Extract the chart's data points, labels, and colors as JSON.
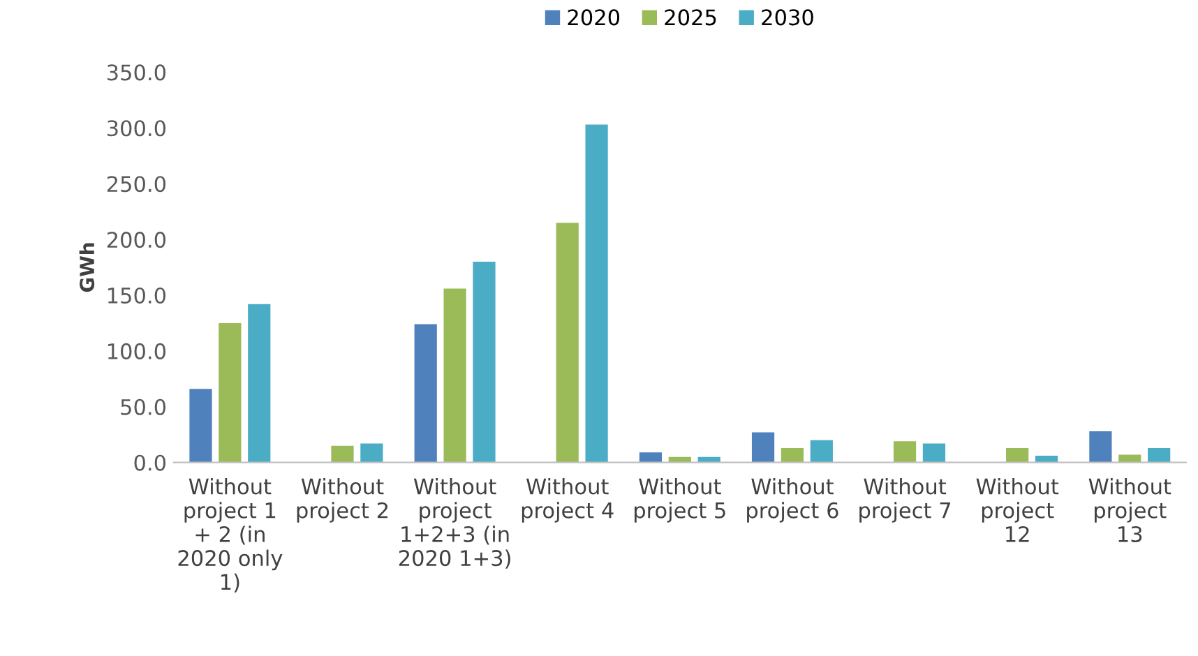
{
  "chart_data": {
    "type": "bar",
    "ylabel": "GWh",
    "categories": [
      "Without\nproject 1\n+ 2 (in\n2020 only\n1)",
      "Without\nproject 2",
      "Without\nproject\n1+2+3 (in\n2020 1+3)",
      "Without\nproject 4",
      "Without\nproject 5",
      "Without\nproject 6",
      "Without\nproject 7",
      "Without\nproject\n12",
      "Without\nproject\n13"
    ],
    "series": [
      {
        "name": "2020",
        "color": "#4f81bd",
        "values": [
          66,
          null,
          124,
          null,
          9,
          27,
          null,
          null,
          28
        ]
      },
      {
        "name": "2025",
        "color": "#9bbb59",
        "values": [
          125,
          15,
          156,
          215,
          5,
          13,
          19,
          13,
          7
        ]
      },
      {
        "name": "2030",
        "color": "#4bacc6",
        "values": [
          142,
          17,
          180,
          303,
          5,
          20,
          17,
          6,
          13
        ]
      }
    ],
    "ylim": [
      0,
      350
    ],
    "yticks": [
      {
        "value": 0,
        "label": "0.0"
      },
      {
        "value": 50,
        "label": "50.0"
      },
      {
        "value": 100,
        "label": "100.0"
      },
      {
        "value": 150,
        "label": "150.0"
      },
      {
        "value": 200,
        "label": "200.0"
      },
      {
        "value": 250,
        "label": "250.0"
      },
      {
        "value": 300,
        "label": "300.0"
      },
      {
        "value": 350,
        "label": "350.0"
      }
    ],
    "grid": false,
    "legend": "top"
  }
}
